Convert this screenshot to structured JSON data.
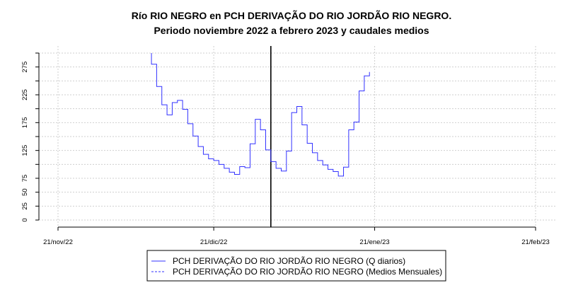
{
  "chart_data": {
    "type": "line",
    "title": "Río RIO NEGRO en PCH DERIVAÇÃO DO RIO JORDÃO RIO NEGRO.",
    "subtitle": "Periodo noviembre 2022 a febrero 2023 y caudales medios",
    "xlabel": "",
    "ylabel": "",
    "xlim": [
      "2022-11-21",
      "2023-02-21"
    ],
    "ylim": [
      0,
      300
    ],
    "grid": true,
    "x_ticks": [
      {
        "date": "2022-11-21",
        "label": "21/nov/22"
      },
      {
        "date": "2022-12-21",
        "label": "21/dic/22"
      },
      {
        "date": "2023-01-21",
        "label": "21/ene/23"
      },
      {
        "date": "2023-02-21",
        "label": "21/feb/23"
      }
    ],
    "y_ticks": [
      0,
      25,
      50,
      75,
      100,
      125,
      150,
      175,
      200,
      225,
      250,
      275,
      300
    ],
    "y_tick_labels": [
      "0",
      "25",
      "50",
      "75",
      "125",
      "175",
      "225",
      "275"
    ],
    "vline_date": "2023-01-01",
    "legend_position": "bottom-center",
    "series": [
      {
        "name": "PCH DERIVAÇÃO DO RIO JORDÃO RIO NEGRO (Q diarios)",
        "style": "solid",
        "color": "#3333ff",
        "start_value": 300,
        "start_date": "2022-12-09",
        "values": [
          280,
          240,
          207,
          189,
          211,
          215,
          199,
          173,
          151,
          132,
          118,
          110,
          107,
          100,
          93,
          86,
          82,
          96,
          94,
          137,
          181,
          162,
          126,
          105,
          93,
          88,
          124,
          193,
          204,
          171,
          138,
          121,
          107,
          99,
          91,
          87,
          79,
          95,
          162,
          176,
          232,
          259
        ],
        "end_value": 266
      },
      {
        "name": "PCH DERIVAÇÃO DO RIO JORDÃO RIO NEGRO (Medios Mensuales)",
        "style": "dashed",
        "color": "#3333ff",
        "values": []
      }
    ]
  }
}
